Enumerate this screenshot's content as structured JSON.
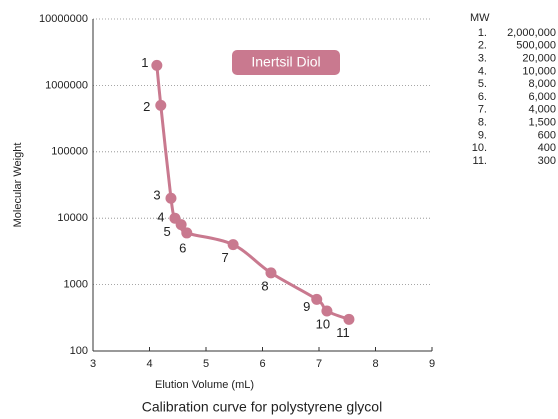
{
  "chart_data": {
    "type": "scatter",
    "title": "Calibration curve for polystyrene glycol",
    "xlabel": "Elution Volume (mL)",
    "ylabel": "Molecular Weight",
    "annotation": "Inertsil Diol",
    "legend_title": "MW",
    "log_y": true,
    "grid": true,
    "xlim": [
      3,
      9
    ],
    "xticks": [
      3,
      4,
      5,
      6,
      7,
      8,
      9
    ],
    "ylim": [
      100,
      10000000
    ],
    "yticks": [
      100,
      1000,
      10000,
      100000,
      1000000,
      10000000
    ],
    "series": [
      {
        "name": "MW",
        "color": "#c9798f",
        "x": [
          4.13,
          4.2,
          4.38,
          4.45,
          4.56,
          4.66,
          5.48,
          6.15,
          6.96,
          7.14,
          7.53
        ],
        "values": [
          2000000,
          500000,
          20000,
          10000,
          8000,
          6000,
          4000,
          1500,
          600,
          400,
          300
        ],
        "value_labels": [
          "2,000,000",
          "500,000",
          "20,000",
          "10,000",
          "8,000",
          "6,000",
          "4,000",
          "1,500",
          "600",
          "400",
          "300"
        ],
        "point_labels": [
          "1",
          "2",
          "3",
          "4",
          "5",
          "6",
          "7",
          "8",
          "9",
          "10",
          "11"
        ],
        "table_index": [
          "1.",
          "2.",
          "3.",
          "4.",
          "5.",
          "6.",
          "7.",
          "8.",
          "9.",
          "10.",
          "11."
        ]
      }
    ]
  }
}
